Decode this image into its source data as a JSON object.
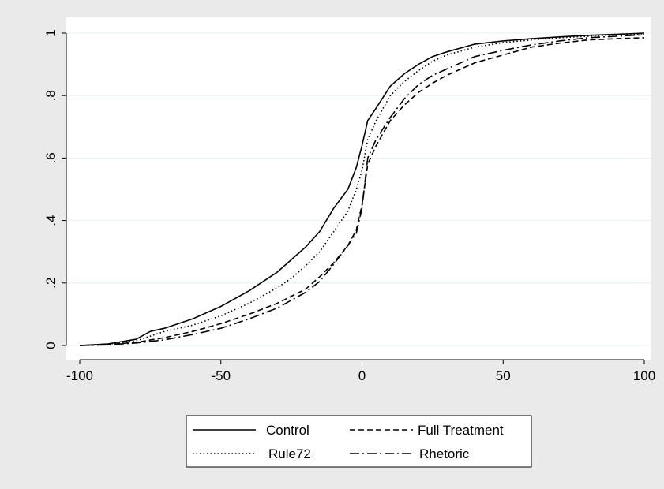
{
  "chart_data": {
    "type": "line",
    "title": "",
    "xlabel": "",
    "ylabel": "",
    "xlim": [
      -100,
      100
    ],
    "ylim": [
      0,
      1
    ],
    "x_ticks": [
      -100,
      -50,
      0,
      50,
      100
    ],
    "x_tick_labels": [
      "-100",
      "-50",
      "0",
      "50",
      "100"
    ],
    "y_ticks": [
      0,
      0.2,
      0.4,
      0.6,
      0.8,
      1
    ],
    "y_tick_labels": [
      "0",
      ".2",
      ".4",
      ".6",
      ".8",
      "1"
    ],
    "grid": "horizontal",
    "legend_position": "bottom",
    "colors": {
      "page_background": "#eaeaea",
      "plot_background": "#ffffff",
      "gridline": "#eaf2f3",
      "series": "#000000"
    },
    "series": [
      {
        "name": "Control",
        "dash": "solid",
        "points": [
          [
            -100,
            0.0
          ],
          [
            -90,
            0.005
          ],
          [
            -80,
            0.02
          ],
          [
            -75,
            0.045
          ],
          [
            -70,
            0.055
          ],
          [
            -60,
            0.085
          ],
          [
            -50,
            0.125
          ],
          [
            -40,
            0.175
          ],
          [
            -30,
            0.235
          ],
          [
            -25,
            0.275
          ],
          [
            -20,
            0.315
          ],
          [
            -15,
            0.365
          ],
          [
            -10,
            0.44
          ],
          [
            -5,
            0.5
          ],
          [
            -2,
            0.57
          ],
          [
            0,
            0.64
          ],
          [
            2,
            0.72
          ],
          [
            5,
            0.76
          ],
          [
            10,
            0.83
          ],
          [
            15,
            0.87
          ],
          [
            20,
            0.9
          ],
          [
            25,
            0.925
          ],
          [
            30,
            0.94
          ],
          [
            40,
            0.965
          ],
          [
            50,
            0.975
          ],
          [
            60,
            0.982
          ],
          [
            70,
            0.988
          ],
          [
            80,
            0.993
          ],
          [
            90,
            0.996
          ],
          [
            100,
            1.0
          ]
        ]
      },
      {
        "name": "Rule72",
        "dash": "dotted",
        "points": [
          [
            -100,
            0.0
          ],
          [
            -90,
            0.004
          ],
          [
            -80,
            0.015
          ],
          [
            -75,
            0.03
          ],
          [
            -70,
            0.045
          ],
          [
            -60,
            0.065
          ],
          [
            -50,
            0.095
          ],
          [
            -40,
            0.135
          ],
          [
            -30,
            0.185
          ],
          [
            -25,
            0.215
          ],
          [
            -20,
            0.255
          ],
          [
            -15,
            0.3
          ],
          [
            -10,
            0.365
          ],
          [
            -5,
            0.43
          ],
          [
            -2,
            0.5
          ],
          [
            0,
            0.56
          ],
          [
            2,
            0.66
          ],
          [
            5,
            0.72
          ],
          [
            10,
            0.8
          ],
          [
            15,
            0.845
          ],
          [
            20,
            0.88
          ],
          [
            25,
            0.91
          ],
          [
            30,
            0.93
          ],
          [
            40,
            0.955
          ],
          [
            50,
            0.97
          ],
          [
            60,
            0.978
          ],
          [
            70,
            0.985
          ],
          [
            80,
            0.99
          ],
          [
            90,
            0.994
          ],
          [
            100,
            0.998
          ]
        ]
      },
      {
        "name": "Full Treatment",
        "dash": "dashed",
        "points": [
          [
            -100,
            0.0
          ],
          [
            -90,
            0.003
          ],
          [
            -80,
            0.01
          ],
          [
            -70,
            0.025
          ],
          [
            -60,
            0.045
          ],
          [
            -50,
            0.07
          ],
          [
            -40,
            0.1
          ],
          [
            -30,
            0.135
          ],
          [
            -20,
            0.18
          ],
          [
            -15,
            0.22
          ],
          [
            -10,
            0.265
          ],
          [
            -5,
            0.32
          ],
          [
            -2,
            0.37
          ],
          [
            0,
            0.45
          ],
          [
            2,
            0.58
          ],
          [
            5,
            0.64
          ],
          [
            10,
            0.72
          ],
          [
            15,
            0.77
          ],
          [
            20,
            0.81
          ],
          [
            25,
            0.84
          ],
          [
            30,
            0.865
          ],
          [
            40,
            0.905
          ],
          [
            50,
            0.93
          ],
          [
            60,
            0.955
          ],
          [
            70,
            0.968
          ],
          [
            80,
            0.978
          ],
          [
            90,
            0.982
          ],
          [
            100,
            0.985
          ]
        ]
      },
      {
        "name": "Rhetoric",
        "dash": "dash-dot",
        "points": [
          [
            -100,
            0.0
          ],
          [
            -90,
            0.002
          ],
          [
            -80,
            0.008
          ],
          [
            -70,
            0.018
          ],
          [
            -60,
            0.035
          ],
          [
            -50,
            0.055
          ],
          [
            -40,
            0.085
          ],
          [
            -30,
            0.12
          ],
          [
            -20,
            0.17
          ],
          [
            -15,
            0.205
          ],
          [
            -10,
            0.26
          ],
          [
            -5,
            0.32
          ],
          [
            -2,
            0.36
          ],
          [
            0,
            0.44
          ],
          [
            2,
            0.6
          ],
          [
            5,
            0.66
          ],
          [
            10,
            0.73
          ],
          [
            15,
            0.79
          ],
          [
            20,
            0.835
          ],
          [
            25,
            0.865
          ],
          [
            30,
            0.885
          ],
          [
            40,
            0.925
          ],
          [
            50,
            0.945
          ],
          [
            60,
            0.962
          ],
          [
            70,
            0.975
          ],
          [
            80,
            0.985
          ],
          [
            90,
            0.99
          ],
          [
            100,
            0.995
          ]
        ]
      }
    ],
    "legend": {
      "entries": [
        {
          "label": "Control",
          "dash": "solid"
        },
        {
          "label": "Full Treatment",
          "dash": "dashed"
        },
        {
          "label": "Rule72",
          "dash": "dotted"
        },
        {
          "label": "Rhetoric",
          "dash": "dash-dot"
        }
      ]
    }
  }
}
